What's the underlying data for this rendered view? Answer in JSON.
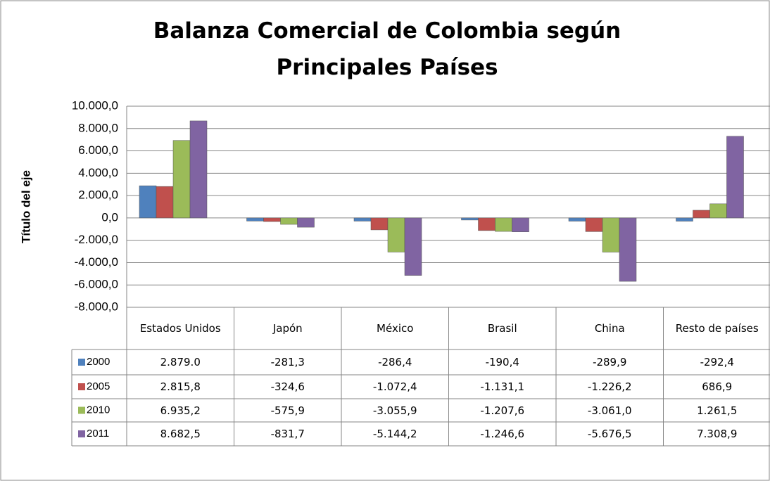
{
  "chart_data": {
    "type": "bar",
    "title": "Balanza Comercial de Colombia según Principales Países",
    "y_axis_label": "Título del eje",
    "categories": [
      "Estados Unidos",
      "Japón",
      "México",
      "Brasil",
      "China",
      "Resto de países"
    ],
    "series": [
      {
        "name": "2000",
        "color": "#4f81bd",
        "values": [
          2879.0,
          -281.3,
          -286.4,
          -190.4,
          -289.9,
          -292.4
        ],
        "value_labels": [
          "2.879.0",
          "-281,3",
          "-286,4",
          "-190,4",
          "-289,9",
          "-292,4"
        ]
      },
      {
        "name": "2005",
        "color": "#c0504d",
        "values": [
          2815.8,
          -324.6,
          -1072.4,
          -1131.1,
          -1226.2,
          686.9
        ],
        "value_labels": [
          "2.815,8",
          "-324,6",
          "-1.072,4",
          "-1.131,1",
          "-1.226,2",
          "686,9"
        ]
      },
      {
        "name": "2010",
        "color": "#9bbb59",
        "values": [
          6935.2,
          -575.9,
          -3055.9,
          -1207.6,
          -3061.0,
          1261.5
        ],
        "value_labels": [
          "6.935,2",
          "-575,9",
          "-3.055,9",
          "-1.207,6",
          "-3.061,0",
          "1.261,5"
        ]
      },
      {
        "name": "2011",
        "color": "#8064a2",
        "values": [
          8682.5,
          -831.7,
          -5144.2,
          -1246.6,
          -5676.5,
          7308.9
        ],
        "value_labels": [
          "8.682,5",
          "-831,7",
          "-5.144,2",
          "-1.246,6",
          "-5.676,5",
          "7.308,9"
        ]
      }
    ],
    "ylim": [
      -8000,
      10000
    ],
    "yticks": [
      {
        "value": 10000,
        "label": "10.000,0"
      },
      {
        "value": 8000,
        "label": "8.000,0"
      },
      {
        "value": 6000,
        "label": "6.000,0"
      },
      {
        "value": 4000,
        "label": "4.000,0"
      },
      {
        "value": 2000,
        "label": "2.000,0"
      },
      {
        "value": 0,
        "label": "0,0"
      },
      {
        "value": -2000,
        "label": "-2.000,0"
      },
      {
        "value": -4000,
        "label": "-4.000,0"
      },
      {
        "value": -6000,
        "label": "-6.000,0"
      },
      {
        "value": -8000,
        "label": "-8.000,0"
      }
    ],
    "grid": true
  }
}
